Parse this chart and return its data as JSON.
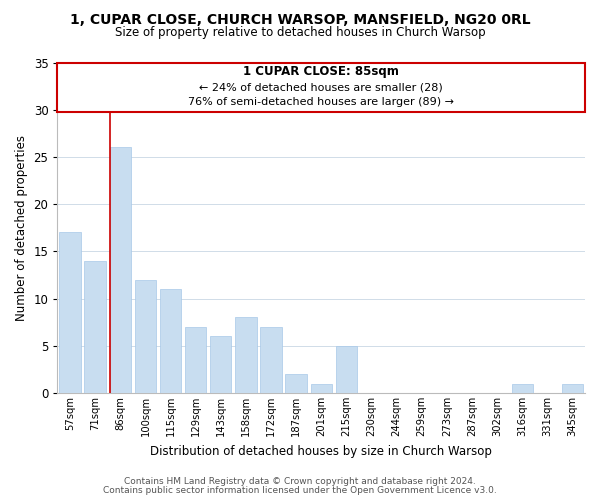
{
  "title": "1, CUPAR CLOSE, CHURCH WARSOP, MANSFIELD, NG20 0RL",
  "subtitle": "Size of property relative to detached houses in Church Warsop",
  "xlabel": "Distribution of detached houses by size in Church Warsop",
  "ylabel": "Number of detached properties",
  "bar_labels": [
    "57sqm",
    "71sqm",
    "86sqm",
    "100sqm",
    "115sqm",
    "129sqm",
    "143sqm",
    "158sqm",
    "172sqm",
    "187sqm",
    "201sqm",
    "215sqm",
    "230sqm",
    "244sqm",
    "259sqm",
    "273sqm",
    "287sqm",
    "302sqm",
    "316sqm",
    "331sqm",
    "345sqm"
  ],
  "bar_heights": [
    17,
    14,
    26,
    12,
    11,
    7,
    6,
    8,
    7,
    2,
    1,
    5,
    0,
    0,
    0,
    0,
    0,
    0,
    1,
    0,
    1
  ],
  "highlight_index": 2,
  "bar_color": "#c8ddf0",
  "bar_edge_color": "#a8c8e8",
  "highlight_line_color": "#cc0000",
  "ylim": [
    0,
    35
  ],
  "yticks": [
    0,
    5,
    10,
    15,
    20,
    25,
    30,
    35
  ],
  "annotation_title": "1 CUPAR CLOSE: 85sqm",
  "annotation_line1": "← 24% of detached houses are smaller (28)",
  "annotation_line2": "76% of semi-detached houses are larger (89) →",
  "footer1": "Contains HM Land Registry data © Crown copyright and database right 2024.",
  "footer2": "Contains public sector information licensed under the Open Government Licence v3.0.",
  "background_color": "#ffffff",
  "grid_color": "#d0dce8"
}
